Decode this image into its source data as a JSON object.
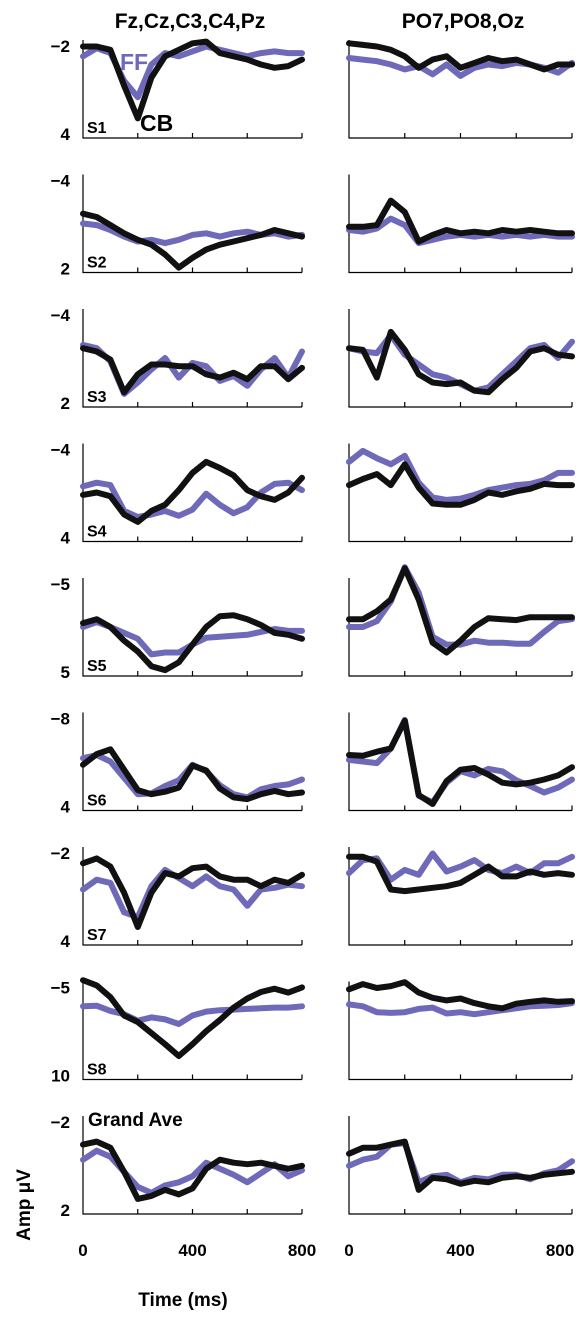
{
  "colors": {
    "cb": "#111111",
    "ff": "#6e6ab9"
  },
  "legend": {
    "ff": "FF",
    "cb": "CB"
  },
  "chart_data": {
    "type": "line",
    "column_titles": [
      "Fz,Cz,C3,C4,Pz",
      "PO7,PO8,Oz"
    ],
    "xlabel": "Time (ms)",
    "ylabel": "Amp μV",
    "xlim": [
      0,
      800
    ],
    "x_ticks": [
      "0",
      "400",
      "800"
    ],
    "y_axis_inverted": true,
    "grid": false,
    "x": [
      0,
      50,
      100,
      150,
      200,
      250,
      300,
      350,
      400,
      450,
      500,
      550,
      600,
      650,
      700,
      750,
      800
    ],
    "panels": [
      {
        "label": "S1",
        "ylim": [
          -2,
          4
        ],
        "y_ticks": [
          "−2",
          "4"
        ],
        "series": [
          {
            "name": "FF",
            "left": [
              -1.0,
              -1.5,
              -1.2,
              0.5,
              1.5,
              -0.5,
              -1.2,
              -1.0,
              -1.3,
              -1.6,
              -1.4,
              -1.2,
              -1.0,
              -1.2,
              -1.3,
              -1.2,
              -1.2
            ],
            "right": [
              -0.9,
              -0.8,
              -0.7,
              -0.5,
              -0.2,
              -0.4,
              0.1,
              -0.5,
              0.2,
              -0.3,
              -0.5,
              -0.4,
              -0.6,
              -0.5,
              -0.3,
              0.0,
              -0.6
            ]
          },
          {
            "name": "CB",
            "left": [
              -1.6,
              -1.6,
              -1.4,
              0.8,
              2.8,
              0.3,
              -1.0,
              -1.4,
              -1.8,
              -1.9,
              -1.2,
              -1.0,
              -0.8,
              -0.5,
              -0.3,
              -0.4,
              -0.8
            ],
            "right": [
              -1.8,
              -1.7,
              -1.6,
              -1.4,
              -1.0,
              -0.3,
              -0.8,
              -1.0,
              -0.3,
              -0.6,
              -0.9,
              -0.7,
              -0.8,
              -0.5,
              -0.2,
              -0.5,
              -0.5
            ]
          }
        ]
      },
      {
        "label": "S2",
        "ylim": [
          -4,
          2
        ],
        "y_ticks": [
          "−4",
          "2"
        ],
        "series": [
          {
            "name": "FF",
            "left": [
              -1.0,
              -0.9,
              -0.6,
              -0.2,
              0.1,
              0.0,
              0.2,
              0.0,
              -0.3,
              -0.4,
              -0.2,
              -0.4,
              -0.5,
              -0.3,
              -0.4,
              -0.2,
              -0.3
            ],
            "right": [
              -0.6,
              -0.5,
              -0.7,
              -1.3,
              -0.9,
              0.2,
              0.0,
              -0.2,
              -0.3,
              -0.2,
              -0.3,
              -0.2,
              -0.3,
              -0.2,
              -0.3,
              -0.2,
              -0.2
            ]
          },
          {
            "name": "CB",
            "left": [
              -1.6,
              -1.4,
              -0.9,
              -0.4,
              0.0,
              0.3,
              0.9,
              1.7,
              1.1,
              0.6,
              0.3,
              0.1,
              -0.1,
              -0.3,
              -0.6,
              -0.4,
              -0.2
            ],
            "right": [
              -0.8,
              -0.8,
              -0.9,
              -2.4,
              -1.7,
              0.1,
              -0.3,
              -0.6,
              -0.4,
              -0.5,
              -0.4,
              -0.6,
              -0.5,
              -0.6,
              -0.5,
              -0.4,
              -0.4
            ]
          }
        ]
      },
      {
        "label": "S3",
        "ylim": [
          -4,
          2
        ],
        "y_ticks": [
          "−4",
          "2"
        ],
        "series": [
          {
            "name": "FF",
            "left": [
              -1.8,
              -1.6,
              -0.8,
              1.2,
              0.5,
              -0.3,
              -1.0,
              0.2,
              -0.7,
              -0.5,
              0.4,
              0.1,
              0.7,
              -0.3,
              -1.0,
              0.2,
              -1.4
            ],
            "right": [
              -1.6,
              -1.4,
              -1.3,
              -2.4,
              -1.2,
              -0.6,
              0.0,
              0.2,
              0.6,
              1.0,
              0.8,
              0.0,
              -0.8,
              -1.6,
              -1.8,
              -1.0,
              -2.0
            ]
          },
          {
            "name": "CB",
            "left": [
              -1.6,
              -1.4,
              -0.9,
              1.1,
              0.0,
              -0.6,
              -0.6,
              -0.5,
              -0.5,
              0.0,
              0.2,
              -0.1,
              0.3,
              -0.5,
              -0.5,
              0.3,
              -0.4
            ],
            "right": [
              -1.6,
              -1.5,
              0.2,
              -2.6,
              -1.5,
              0.0,
              0.5,
              0.6,
              0.5,
              1.0,
              1.1,
              0.3,
              -0.4,
              -1.4,
              -1.6,
              -1.2,
              -1.1
            ]
          }
        ]
      },
      {
        "label": "S4",
        "ylim": [
          -4,
          4
        ],
        "y_ticks": [
          "−4",
          "4"
        ],
        "series": [
          {
            "name": "FF",
            "left": [
              -0.5,
              -0.8,
              -0.6,
              1.5,
              2.0,
              1.8,
              1.5,
              1.9,
              1.4,
              0.1,
              1.0,
              1.7,
              1.2,
              0.0,
              -0.7,
              -0.8,
              -0.2
            ],
            "right": [
              -2.5,
              -3.4,
              -2.8,
              -2.3,
              -3.0,
              -0.8,
              0.4,
              0.6,
              0.5,
              0.2,
              -0.2,
              -0.4,
              -0.6,
              -0.7,
              -1.0,
              -1.6,
              -1.6
            ]
          },
          {
            "name": "CB",
            "left": [
              0.2,
              0.0,
              0.3,
              1.8,
              2.4,
              1.5,
              1.0,
              -0.2,
              -1.6,
              -2.5,
              -2.0,
              -1.4,
              -0.2,
              0.3,
              0.6,
              0.0,
              -1.2
            ],
            "right": [
              -0.6,
              -1.1,
              -1.5,
              -0.6,
              -2.3,
              -0.4,
              0.9,
              1.0,
              1.0,
              0.6,
              0.0,
              0.2,
              -0.1,
              -0.3,
              -0.7,
              -0.6,
              -0.6
            ]
          }
        ]
      },
      {
        "label": "S5",
        "ylim": [
          -5,
          5
        ],
        "y_ticks": [
          "−5",
          "5"
        ],
        "series": [
          {
            "name": "FF",
            "left": [
              0.0,
              -0.5,
              0.0,
              0.6,
              1.2,
              2.8,
              2.6,
              2.6,
              1.8,
              1.1,
              1.0,
              0.9,
              0.8,
              0.5,
              0.2,
              0.4,
              0.4
            ],
            "right": [
              0.0,
              0.0,
              -0.6,
              -2.6,
              -6.1,
              -3.5,
              1.0,
              1.8,
              1.8,
              1.4,
              1.6,
              1.6,
              1.7,
              1.7,
              0.5,
              -0.6,
              -0.8
            ]
          },
          {
            "name": "CB",
            "left": [
              -0.4,
              -0.8,
              0.0,
              1.4,
              2.5,
              4.0,
              4.4,
              3.6,
              1.8,
              0.0,
              -1.1,
              -1.2,
              -0.8,
              -0.2,
              0.6,
              0.8,
              1.2
            ],
            "right": [
              -0.8,
              -0.8,
              -1.6,
              -2.8,
              -6.0,
              -2.8,
              1.6,
              2.6,
              1.4,
              0.0,
              -0.9,
              -0.8,
              -0.7,
              -1.0,
              -1.0,
              -1.0,
              -1.0
            ]
          }
        ]
      },
      {
        "label": "S6",
        "ylim": [
          -8,
          4
        ],
        "y_ticks": [
          "−8",
          "4"
        ],
        "series": [
          {
            "name": "FF",
            "left": [
              -2.4,
              -2.8,
              -2.0,
              0.0,
              2.0,
              1.9,
              1.0,
              0.3,
              -1.6,
              -0.8,
              0.9,
              2.0,
              2.4,
              1.4,
              1.0,
              0.8,
              0.2
            ],
            "right": [
              -2.2,
              -2.0,
              -1.8,
              -3.6,
              -7.1,
              2.2,
              3.0,
              0.6,
              -0.8,
              -0.3,
              -1.1,
              -0.8,
              0.3,
              1.0,
              1.8,
              1.2,
              0.2
            ]
          },
          {
            "name": "CB",
            "left": [
              -1.6,
              -2.9,
              -3.5,
              -1.0,
              1.5,
              2.0,
              1.7,
              1.2,
              -1.5,
              -0.9,
              1.3,
              2.4,
              2.6,
              2.0,
              1.6,
              2.0,
              1.8
            ],
            "right": [
              -2.8,
              -2.7,
              -3.2,
              -3.6,
              -7.0,
              2.1,
              3.2,
              0.4,
              -1.0,
              -1.2,
              -0.4,
              0.6,
              0.8,
              0.6,
              0.2,
              -0.3,
              -1.3
            ]
          }
        ]
      },
      {
        "label": "S7",
        "ylim": [
          -2,
          4
        ],
        "y_ticks": [
          "−2",
          "4"
        ],
        "series": [
          {
            "name": "FF",
            "left": [
              0.6,
              0.0,
              0.2,
              2.0,
              2.3,
              0.4,
              -0.6,
              -0.1,
              0.4,
              -0.2,
              0.4,
              0.6,
              1.6,
              0.6,
              0.5,
              0.3,
              0.4
            ],
            "right": [
              -0.4,
              -1.2,
              -1.3,
              0.0,
              -0.6,
              -0.3,
              -1.6,
              -0.5,
              -0.8,
              -1.2,
              -0.6,
              -0.4,
              -0.8,
              -0.4,
              -1.0,
              -1.0,
              -1.4
            ]
          },
          {
            "name": "CB",
            "left": [
              -1.0,
              -1.3,
              -0.8,
              0.8,
              2.9,
              0.8,
              -0.4,
              -0.2,
              -0.7,
              -0.8,
              -0.2,
              0.0,
              0.0,
              0.4,
              0.0,
              0.2,
              -0.3
            ],
            "right": [
              -1.4,
              -1.4,
              -1.1,
              0.6,
              0.7,
              0.6,
              0.5,
              0.4,
              0.2,
              -0.3,
              -0.8,
              -0.2,
              -0.2,
              -0.5,
              -0.3,
              -0.4,
              -0.3
            ]
          }
        ]
      },
      {
        "label": "S8",
        "ylim": [
          -5,
          10
        ],
        "y_ticks": [
          "−5",
          "10"
        ],
        "series": [
          {
            "name": "FF",
            "left": [
              -1.2,
              -1.3,
              -0.5,
              0.0,
              1.0,
              0.5,
              0.8,
              1.5,
              0.2,
              -0.4,
              -0.6,
              -0.7,
              -0.8,
              -0.9,
              -1.0,
              -1.0,
              -1.2
            ],
            "right": [
              -1.5,
              -1.2,
              -0.3,
              -0.2,
              -0.3,
              -0.8,
              -1.0,
              -0.1,
              -0.3,
              0.0,
              -0.3,
              -0.6,
              -0.9,
              -1.2,
              -1.3,
              -1.4,
              -1.7
            ]
          },
          {
            "name": "CB",
            "left": [
              -5.2,
              -4.4,
              -2.6,
              0.2,
              1.2,
              2.9,
              4.6,
              6.4,
              4.6,
              2.6,
              0.9,
              -1.0,
              -2.4,
              -3.4,
              -3.9,
              -3.3,
              -4.1
            ],
            "right": [
              -3.8,
              -4.6,
              -4.0,
              -4.3,
              -4.9,
              -3.3,
              -2.5,
              -2.1,
              -2.4,
              -1.7,
              -1.2,
              -0.9,
              -1.6,
              -1.9,
              -2.1,
              -1.9,
              -2.0
            ]
          }
        ]
      },
      {
        "label": "Grand Ave",
        "ylim": [
          -3.5,
          3
        ],
        "y_ticks": [
          "−2",
          "2"
        ],
        "series": [
          {
            "name": "FF",
            "left": [
              -0.6,
              -1.2,
              -0.8,
              0.2,
              1.2,
              1.6,
              1.1,
              0.9,
              0.5,
              -0.4,
              0.0,
              0.4,
              0.9,
              0.3,
              -0.3,
              0.5,
              0.1
            ],
            "right": [
              -0.2,
              -0.6,
              -0.8,
              -1.6,
              -1.7,
              0.9,
              0.5,
              0.4,
              0.9,
              0.6,
              0.7,
              0.4,
              0.4,
              0.7,
              0.3,
              0.1,
              -0.5
            ]
          },
          {
            "name": "CB",
            "left": [
              -1.6,
              -1.8,
              -1.4,
              0.2,
              2.0,
              1.8,
              1.4,
              1.7,
              1.3,
              0.0,
              -0.6,
              -0.4,
              -0.3,
              -0.4,
              -0.2,
              0.0,
              -0.2
            ],
            "right": [
              -1.0,
              -1.4,
              -1.4,
              -1.6,
              -1.8,
              1.4,
              0.6,
              0.7,
              1.0,
              0.8,
              0.9,
              0.6,
              0.5,
              0.6,
              0.4,
              0.3,
              0.2
            ]
          }
        ]
      }
    ]
  }
}
